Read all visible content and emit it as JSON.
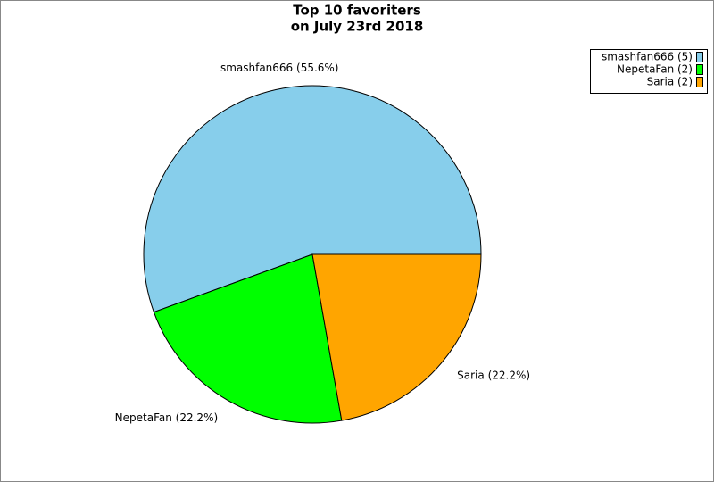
{
  "chart_data": {
    "type": "pie",
    "title": [
      "Top 10 favoriters",
      "on July 23rd 2018"
    ],
    "categories": [
      "smashfan666",
      "NepetaFan",
      "Saria"
    ],
    "values": [
      5,
      2,
      2
    ],
    "colors": [
      "#87ceeb",
      "#00ff00",
      "#ffa500"
    ],
    "labels": [
      "smashfan666 (55.6%)",
      "NepetaFan (22.2%)",
      "Saria (22.2%)"
    ],
    "legend": [
      "smashfan666 (5)",
      "NepetaFan (2)",
      "Saria (2)"
    ],
    "legend_position": "upper right"
  }
}
